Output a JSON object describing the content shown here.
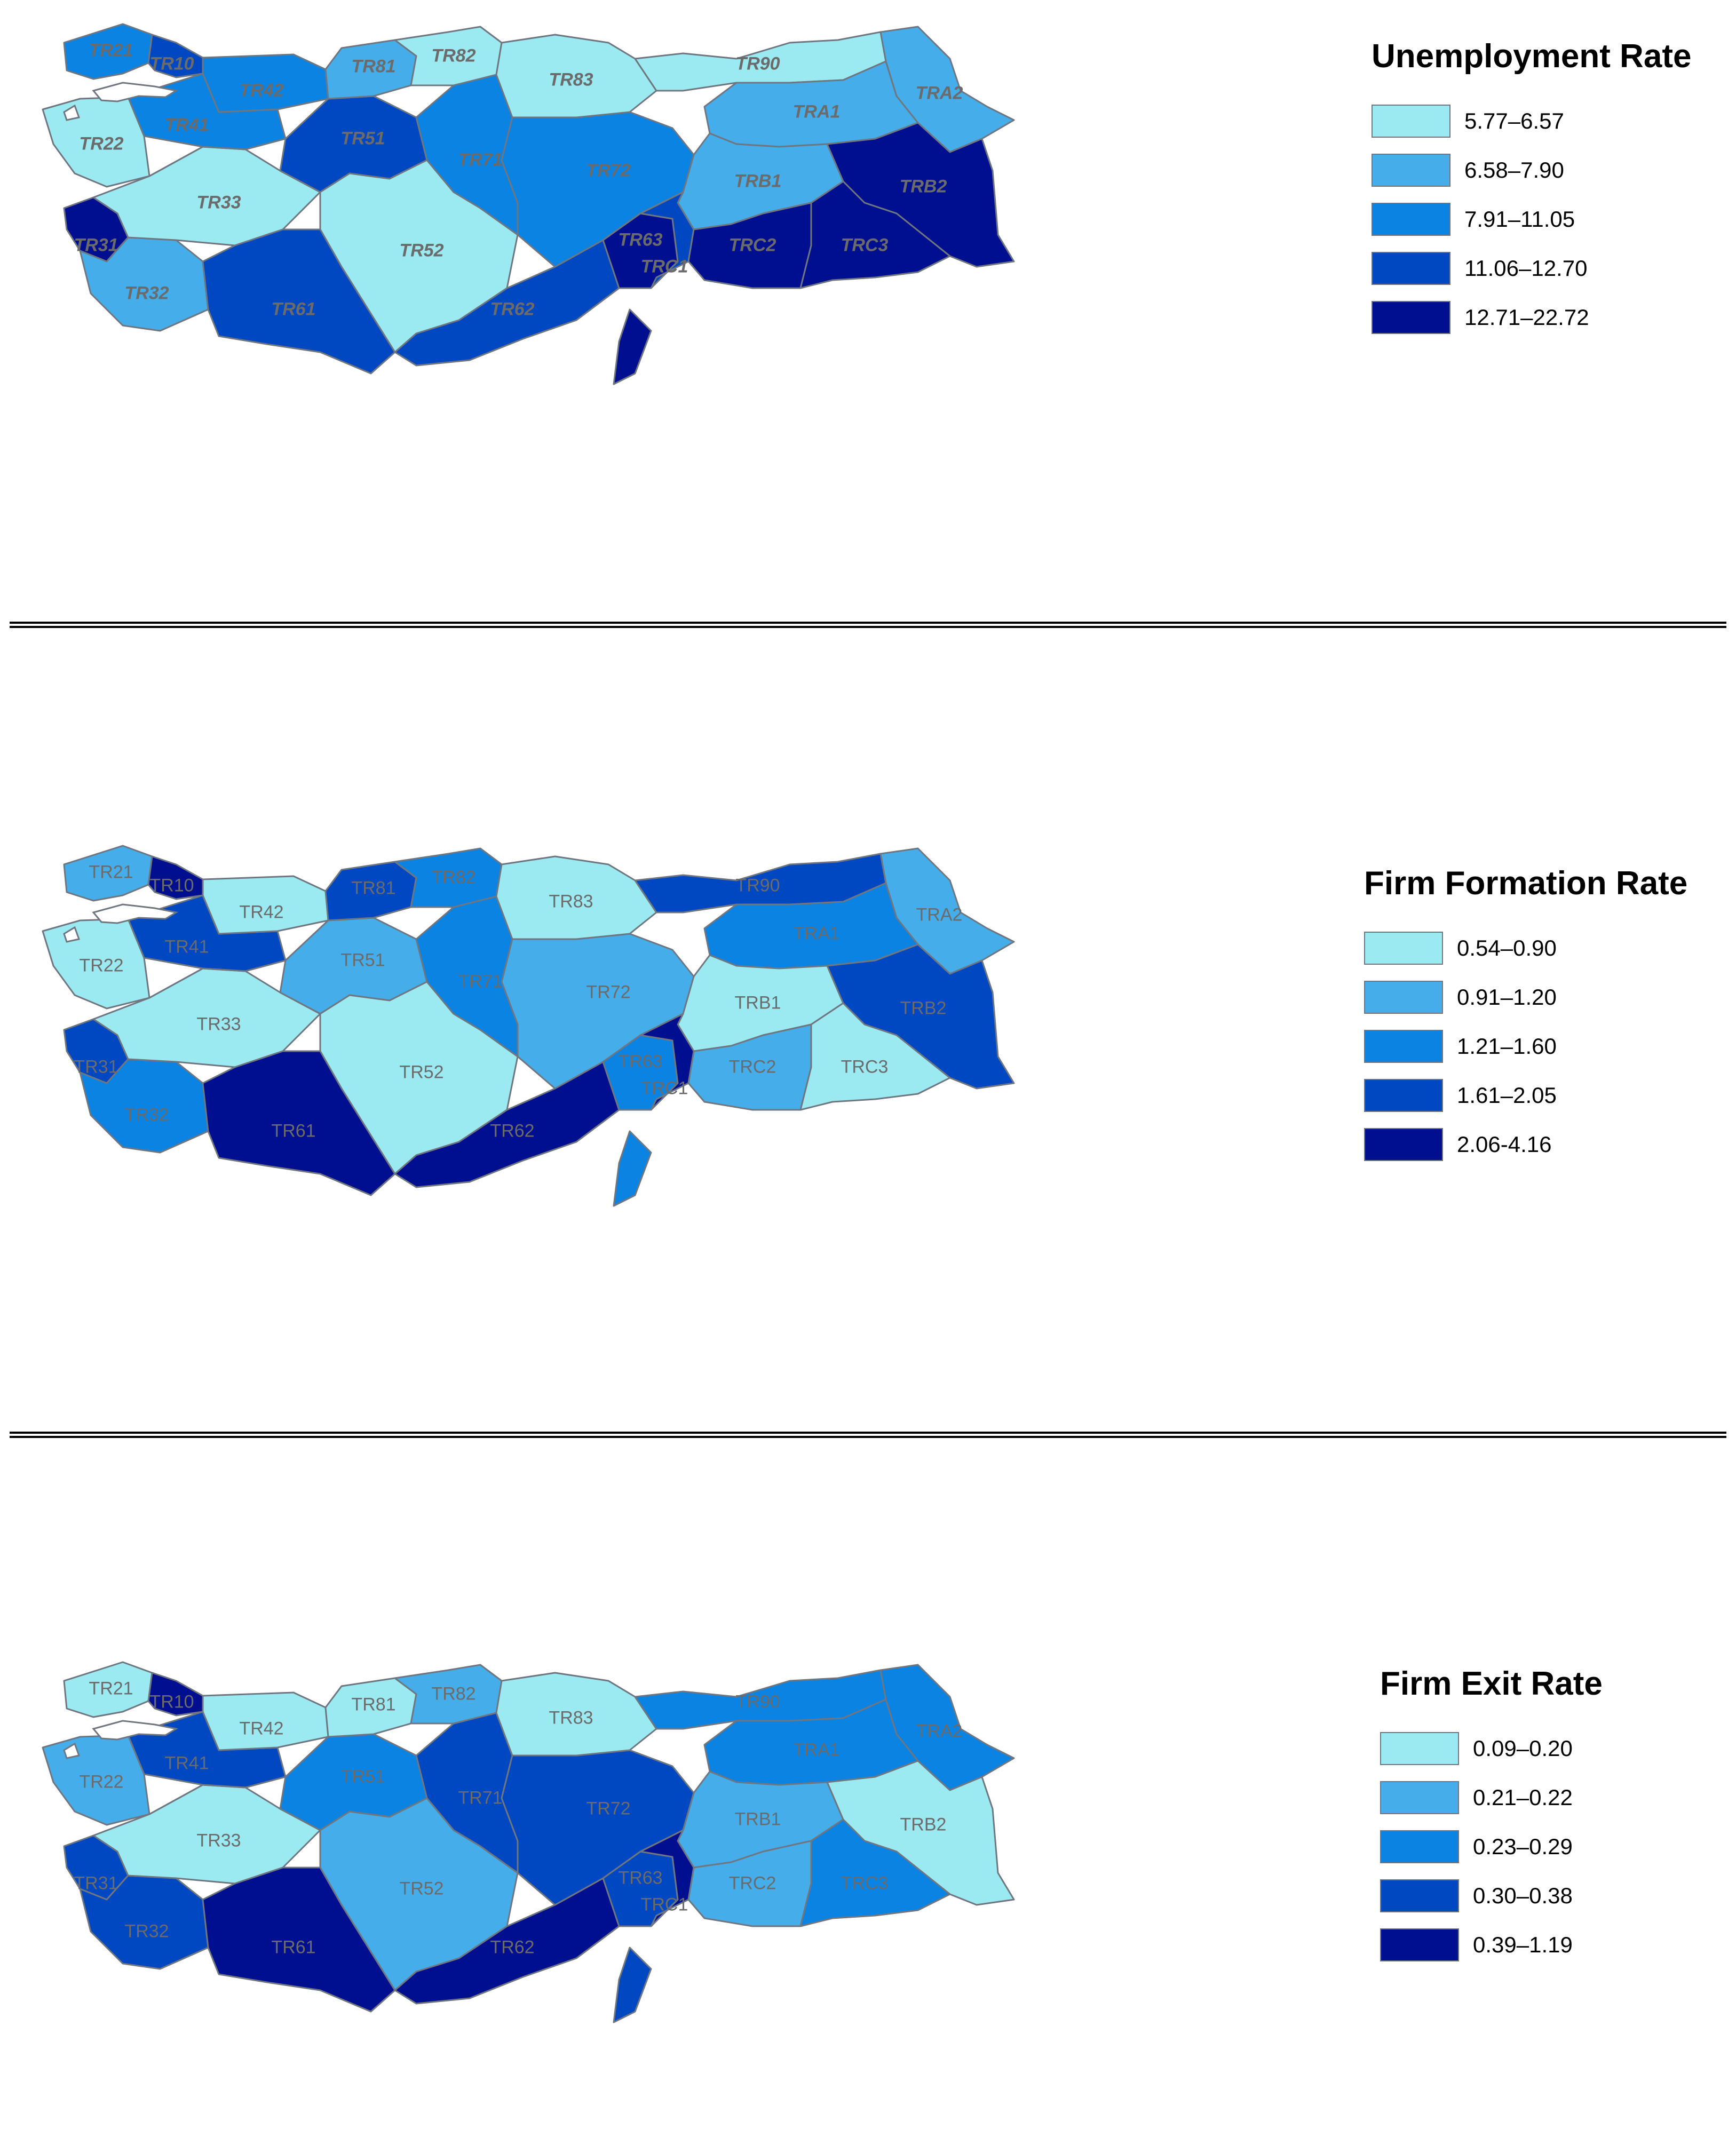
{
  "colors": {
    "c1": "#9beaf2",
    "c2": "#45aeea",
    "c3": "#0a83e2",
    "c4": "#0047c2",
    "c5": "#000f8f"
  },
  "maps": [
    {
      "legend": {
        "title": "Unemployment Rate",
        "classes": [
          "5.77–6.57",
          "6.58–7.90",
          "7.91–11.05",
          "11.06–12.70",
          "12.71–22.72"
        ]
      },
      "regions": [
        {
          "id": "TR21",
          "label": "TR21",
          "class": 3
        },
        {
          "id": "TR10",
          "label": "TR10",
          "class": 4
        },
        {
          "id": "TR22",
          "label": "TR22",
          "class": 1
        },
        {
          "id": "TR31",
          "label": "TR31",
          "class": 5
        },
        {
          "id": "TR32",
          "label": "TR32",
          "class": 2
        },
        {
          "id": "TR33",
          "label": "TR33",
          "class": 1
        },
        {
          "id": "TR41",
          "label": "TR41",
          "class": 3
        },
        {
          "id": "TR42",
          "label": "TR42",
          "class": 3
        },
        {
          "id": "TR51",
          "label": "TR51",
          "class": 4
        },
        {
          "id": "TR52",
          "label": "TR52",
          "class": 1
        },
        {
          "id": "TR61",
          "label": "TR61",
          "class": 4
        },
        {
          "id": "TR62",
          "label": "TR62",
          "class": 4
        },
        {
          "id": "TR63",
          "label": "TR63",
          "class": 5
        },
        {
          "id": "TR71",
          "label": "TR71",
          "class": 3
        },
        {
          "id": "TR72",
          "label": "TR72",
          "class": 3
        },
        {
          "id": "TR81",
          "label": "TR81",
          "class": 2
        },
        {
          "id": "TR82",
          "label": "TR82",
          "class": 1
        },
        {
          "id": "TR83",
          "label": "TR83",
          "class": 1
        },
        {
          "id": "TR90",
          "label": "TR90",
          "class": 1
        },
        {
          "id": "TRA1",
          "label": "TRA1",
          "class": 2
        },
        {
          "id": "TRA2",
          "label": "TRA2",
          "class": 2
        },
        {
          "id": "TRB1",
          "label": "TRB1",
          "class": 2
        },
        {
          "id": "TRB2",
          "label": "TRB2",
          "class": 5
        },
        {
          "id": "TRC1",
          "label": "TRC1",
          "class": 4
        },
        {
          "id": "TRC2",
          "label": "TRC2",
          "class": 5
        },
        {
          "id": "TRC3",
          "label": "TRC3",
          "class": 5
        }
      ]
    },
    {
      "legend": {
        "title": "Firm Formation Rate",
        "classes": [
          "0.54–0.90",
          "0.91–1.20",
          "1.21–1.60",
          "1.61–2.05",
          "2.06-4.16"
        ]
      },
      "regions": [
        {
          "id": "TR21",
          "label": "TR21",
          "class": 2
        },
        {
          "id": "TR10",
          "label": "TR10",
          "class": 5
        },
        {
          "id": "TR22",
          "label": "TR22",
          "class": 1
        },
        {
          "id": "TR31",
          "label": "TR31",
          "class": 4
        },
        {
          "id": "TR32",
          "label": "TR32",
          "class": 3
        },
        {
          "id": "TR33",
          "label": "TR33",
          "class": 1
        },
        {
          "id": "TR41",
          "label": "TR41",
          "class": 4
        },
        {
          "id": "TR42",
          "label": "TR42",
          "class": 1
        },
        {
          "id": "TR51",
          "label": "TR51",
          "class": 2
        },
        {
          "id": "TR52",
          "label": "TR52",
          "class": 1
        },
        {
          "id": "TR61",
          "label": "TR61",
          "class": 5
        },
        {
          "id": "TR62",
          "label": "TR62",
          "class": 5
        },
        {
          "id": "TR63",
          "label": "TR63",
          "class": 3
        },
        {
          "id": "TR71",
          "label": "TR71",
          "class": 3
        },
        {
          "id": "TR72",
          "label": "TR72",
          "class": 2
        },
        {
          "id": "TR81",
          "label": "TR81",
          "class": 4
        },
        {
          "id": "TR82",
          "label": "TR82",
          "class": 3
        },
        {
          "id": "TR83",
          "label": "TR83",
          "class": 1
        },
        {
          "id": "TR90",
          "label": "TR90",
          "class": 4
        },
        {
          "id": "TRA1",
          "label": "TRA1",
          "class": 3
        },
        {
          "id": "TRA2",
          "label": "TRA2",
          "class": 2
        },
        {
          "id": "TRB1",
          "label": "TRB1",
          "class": 1
        },
        {
          "id": "TRB2",
          "label": "TRB2",
          "class": 4
        },
        {
          "id": "TRC1",
          "label": "TRC1",
          "class": 5
        },
        {
          "id": "TRC2",
          "label": "TRC2",
          "class": 2
        },
        {
          "id": "TRC3",
          "label": "TRC3",
          "class": 1
        }
      ]
    },
    {
      "legend": {
        "title": "Firm Exit Rate",
        "classes": [
          "0.09–0.20",
          "0.21–0.22",
          "0.23–0.29",
          "0.30–0.38",
          "0.39–1.19"
        ]
      },
      "regions": [
        {
          "id": "TR21",
          "label": "TR21",
          "class": 1
        },
        {
          "id": "TR10",
          "label": "TR10",
          "class": 5
        },
        {
          "id": "TR22",
          "label": "TR22",
          "class": 2
        },
        {
          "id": "TR31",
          "label": "TR31",
          "class": 4
        },
        {
          "id": "TR32",
          "label": "TR32",
          "class": 4
        },
        {
          "id": "TR33",
          "label": "TR33",
          "class": 1
        },
        {
          "id": "TR41",
          "label": "TR41",
          "class": 4
        },
        {
          "id": "TR42",
          "label": "TR42",
          "class": 1
        },
        {
          "id": "TR51",
          "label": "TR51",
          "class": 3
        },
        {
          "id": "TR52",
          "label": "TR52",
          "class": 2
        },
        {
          "id": "TR61",
          "label": "TR61",
          "class": 5
        },
        {
          "id": "TR62",
          "label": "TR62",
          "class": 5
        },
        {
          "id": "TR63",
          "label": "TR63",
          "class": 4
        },
        {
          "id": "TR71",
          "label": "TR71",
          "class": 4
        },
        {
          "id": "TR72",
          "label": "TR72",
          "class": 4
        },
        {
          "id": "TR81",
          "label": "TR81",
          "class": 1
        },
        {
          "id": "TR82",
          "label": "TR82",
          "class": 2
        },
        {
          "id": "TR83",
          "label": "TR83",
          "class": 1
        },
        {
          "id": "TR90",
          "label": "TR90",
          "class": 3
        },
        {
          "id": "TRA1",
          "label": "TRA1",
          "class": 3
        },
        {
          "id": "TRA2",
          "label": "TRA2",
          "class": 3
        },
        {
          "id": "TRB1",
          "label": "TRB1",
          "class": 2
        },
        {
          "id": "TRB2",
          "label": "TRB2",
          "class": 1
        },
        {
          "id": "TRC1",
          "label": "TRC1",
          "class": 5
        },
        {
          "id": "TRC2",
          "label": "TRC2",
          "class": 2
        },
        {
          "id": "TRC3",
          "label": "TRC3",
          "class": 3
        }
      ]
    }
  ]
}
